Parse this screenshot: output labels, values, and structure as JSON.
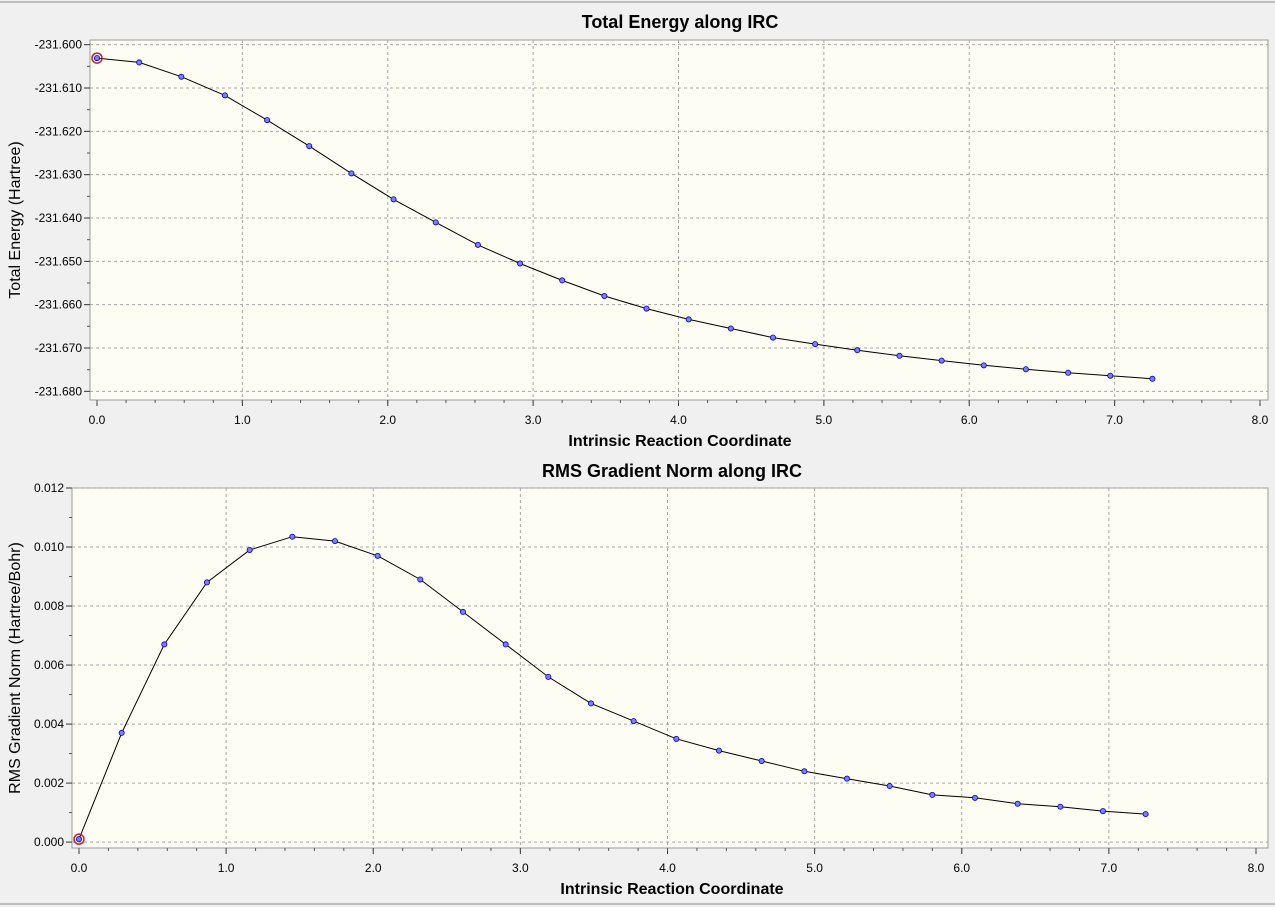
{
  "colors": {
    "window_background": "#f0f0f0",
    "plot_background": "#fdfdf4",
    "grid": "#a8a8a8",
    "line": "#000000",
    "point_fill": "#7f7fe8",
    "point_stroke": "#0000c0",
    "highlight": "#c0203a"
  },
  "chart_data": [
    {
      "type": "line",
      "title": "Total Energy along IRC",
      "xlabel": "Intrinsic Reaction Coordinate",
      "ylabel": "Total Energy (Hartree)",
      "xlim": [
        0,
        8
      ],
      "ylim": [
        -231.682,
        -231.598
      ],
      "grid": true,
      "x_ticks": [
        "0.0",
        "1.0",
        "2.0",
        "3.0",
        "4.0",
        "5.0",
        "6.0",
        "7.0",
        "8.0"
      ],
      "y_ticks": [
        "-231.600",
        "-231.610",
        "-231.620",
        "-231.630",
        "-231.640",
        "-231.650",
        "-231.660",
        "-231.670",
        "-231.680"
      ],
      "x_tick_values": [
        0,
        1,
        2,
        3,
        4,
        5,
        6,
        7,
        8
      ],
      "y_tick_values": [
        -231.6,
        -231.61,
        -231.62,
        -231.63,
        -231.64,
        -231.65,
        -231.66,
        -231.67,
        -231.68
      ],
      "highlighted_point_index": 0,
      "x": [
        0.0,
        0.29,
        0.58,
        0.88,
        1.17,
        1.46,
        1.75,
        2.04,
        2.33,
        2.62,
        2.91,
        3.2,
        3.49,
        3.78,
        4.07,
        4.36,
        4.65,
        4.94,
        5.23,
        5.52,
        5.81,
        6.1,
        6.39,
        6.68,
        6.97,
        7.26
      ],
      "y": [
        -231.6031,
        -231.6041,
        -231.6074,
        -231.6117,
        -231.6174,
        -231.6234,
        -231.6297,
        -231.6357,
        -231.641,
        -231.6462,
        -231.6505,
        -231.6544,
        -231.658,
        -231.6609,
        -231.6634,
        -231.6655,
        -231.6676,
        -231.6691,
        -231.6705,
        -231.6718,
        -231.6729,
        -231.674,
        -231.6749,
        -231.6757,
        -231.6764,
        -231.6771
      ]
    },
    {
      "type": "line",
      "title": "RMS Gradient Norm along IRC",
      "xlabel": "Intrinsic Reaction Coordinate",
      "ylabel": "RMS Gradient Norm (Hartree/Bohr)",
      "xlim": [
        0,
        8
      ],
      "ylim": [
        -0.0002,
        0.012
      ],
      "grid": true,
      "x_ticks": [
        "0.0",
        "1.0",
        "2.0",
        "3.0",
        "4.0",
        "5.0",
        "6.0",
        "7.0",
        "8.0"
      ],
      "y_ticks": [
        "0.012",
        "0.010",
        "0.008",
        "0.006",
        "0.004",
        "0.002",
        "0.000"
      ],
      "x_tick_values": [
        0,
        1,
        2,
        3,
        4,
        5,
        6,
        7,
        8
      ],
      "y_tick_values": [
        0.012,
        0.01,
        0.008,
        0.006,
        0.004,
        0.002,
        0.0
      ],
      "highlighted_point_index": 0,
      "x": [
        0.0,
        0.29,
        0.58,
        0.87,
        1.16,
        1.45,
        1.74,
        2.03,
        2.32,
        2.61,
        2.9,
        3.19,
        3.48,
        3.77,
        4.06,
        4.35,
        4.64,
        4.93,
        5.22,
        5.51,
        5.8,
        6.09,
        6.38,
        6.67,
        6.96,
        7.25
      ],
      "y": [
        0.0001,
        0.0037,
        0.0067,
        0.0088,
        0.0099,
        0.01035,
        0.0102,
        0.0097,
        0.0089,
        0.0078,
        0.0067,
        0.0056,
        0.0047,
        0.0041,
        0.0035,
        0.0031,
        0.00275,
        0.0024,
        0.00215,
        0.0019,
        0.0016,
        0.0015,
        0.0013,
        0.0012,
        0.00105,
        0.00095
      ]
    }
  ]
}
